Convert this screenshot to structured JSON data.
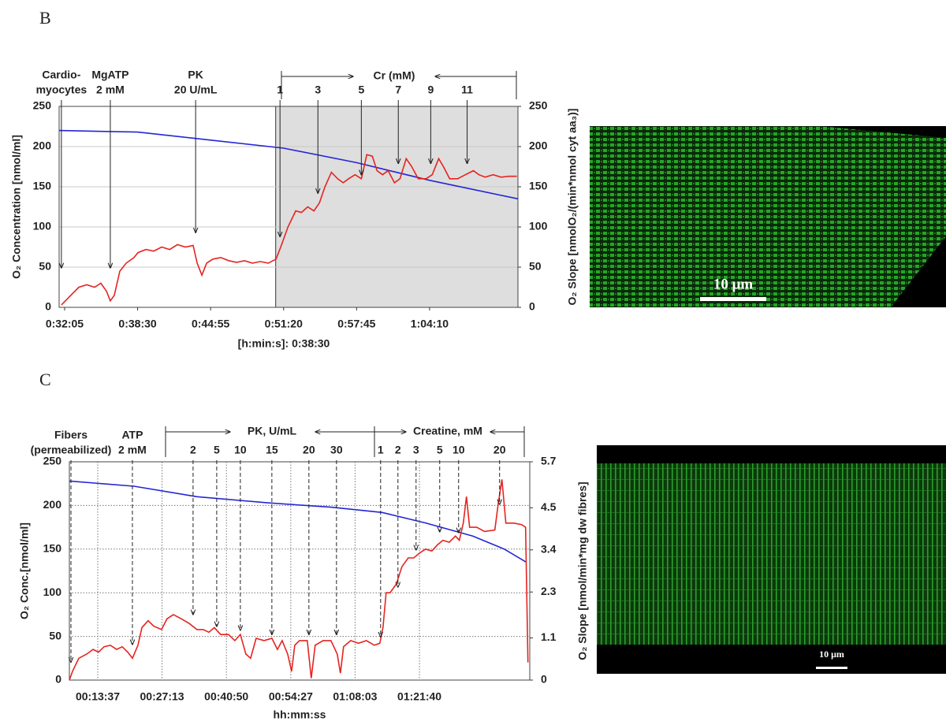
{
  "panel_labels": [
    "B",
    "C"
  ],
  "images": [
    {
      "scale_bar": "10 μm"
    },
    {
      "scale_bar": "10 μm"
    }
  ],
  "chart_data": [
    {
      "type": "line",
      "ylabel": "O₂ Concentration [nmol/ml]",
      "y2label": "O₂ Slope [nmolO₂/(min*nmol cyt aa₃)]",
      "xlabel": "[h:min:s]: 0:38:30",
      "xlim": [
        1896,
        4316
      ],
      "ylim": [
        0,
        250
      ],
      "y2lim": [
        0,
        250
      ],
      "xticks": [
        {
          "value": 1925,
          "label": "0:32:05"
        },
        {
          "value": 2310,
          "label": "0:38:30"
        },
        {
          "value": 2695,
          "label": "0:44:55"
        },
        {
          "value": 3080,
          "label": "0:51:20"
        },
        {
          "value": 3465,
          "label": "0:57:45"
        },
        {
          "value": 3850,
          "label": "1:04:10"
        }
      ],
      "yticks": [
        0,
        50,
        100,
        150,
        200,
        250
      ],
      "y2ticks": [
        0,
        50,
        100,
        150,
        200,
        250
      ],
      "xgrid": false,
      "ygrid": true,
      "grid_style": "solid",
      "shaded_from": 3038,
      "arrow_style": "solid",
      "bracket_labels": [
        "Cr (mM)"
      ],
      "series": [
        {
          "color": "#2525d6",
          "x": [
            1896,
            2310,
            2695,
            3080,
            3465,
            3850,
            4316
          ],
          "values": [
            220,
            218,
            208,
            198,
            180,
            158,
            135
          ]
        },
        {
          "color": "#e62420",
          "axis": "y2",
          "x": [
            1908,
            1958,
            2000,
            2042,
            2083,
            2116,
            2146,
            2166,
            2187,
            2216,
            2250,
            2291,
            2312,
            2354,
            2395,
            2437,
            2479,
            2520,
            2562,
            2603,
            2624,
            2649,
            2674,
            2707,
            2749,
            2791,
            2832,
            2874,
            2916,
            2957,
            2999,
            3040,
            3065,
            3103,
            3144,
            3174,
            3207,
            3240,
            3269,
            3298,
            3332,
            3365,
            3394,
            3423,
            3457,
            3490,
            3519,
            3548,
            3573,
            3602,
            3631,
            3665,
            3694,
            3727,
            3756,
            3790,
            3831,
            3864,
            3898,
            3923,
            3956,
            3998,
            4039,
            4081,
            4110,
            4143,
            4185,
            4227,
            4268,
            4310
          ],
          "values": [
            3,
            15,
            25,
            28,
            25,
            30,
            20,
            8,
            15,
            45,
            55,
            62,
            68,
            72,
            70,
            75,
            72,
            78,
            75,
            77,
            55,
            40,
            55,
            60,
            62,
            58,
            56,
            58,
            55,
            57,
            55,
            60,
            75,
            100,
            120,
            118,
            125,
            120,
            130,
            150,
            168,
            160,
            155,
            160,
            165,
            160,
            190,
            188,
            170,
            165,
            170,
            155,
            160,
            185,
            175,
            160,
            160,
            165,
            185,
            175,
            160,
            160,
            165,
            170,
            165,
            162,
            165,
            162,
            163,
            163
          ]
        }
      ],
      "annotations": [
        {
          "lines": [
            "Cardio-",
            "myocytes"
          ],
          "x": 1908,
          "y": 49
        },
        {
          "lines": [
            "MgATP",
            "2 mM"
          ],
          "x": 2166,
          "y": 49
        },
        {
          "lines": [
            "PK",
            "20 U/mL"
          ],
          "x": 2616,
          "y": 93
        },
        {
          "lines": [
            "1"
          ],
          "x": 3061,
          "y": 88
        },
        {
          "lines": [
            "3"
          ],
          "x": 3261,
          "y": 142
        },
        {
          "lines": [
            "5"
          ],
          "x": 3490,
          "y": 165
        },
        {
          "lines": [
            "7"
          ],
          "x": 3685,
          "y": 179
        },
        {
          "lines": [
            "9"
          ],
          "x": 3856,
          "y": 179
        },
        {
          "lines": [
            "11"
          ],
          "x": 4048,
          "y": 179
        }
      ]
    },
    {
      "type": "line",
      "ylabel": "O₂ Conc.[nmol/ml]",
      "y2label": "O₂ Slope [nmol/min*mg dw fibres]",
      "xlabel": "hh:mm:ss",
      "xlim": [
        457,
        6300
      ],
      "ylim": [
        0,
        250
      ],
      "y2lim": [
        0,
        5.7
      ],
      "xticks": [
        {
          "value": 817,
          "label": "00:13:37"
        },
        {
          "value": 1633,
          "label": "00:27:13"
        },
        {
          "value": 2450,
          "label": "00:40:50"
        },
        {
          "value": 3267,
          "label": "00:54:27"
        },
        {
          "value": 4083,
          "label": "01:08:03"
        },
        {
          "value": 4900,
          "label": "01:21:40"
        }
      ],
      "yticks": [
        0,
        50,
        100,
        150,
        200,
        250
      ],
      "y2ticks": [
        0,
        1.1,
        2.3,
        3.4,
        4.5,
        5.7
      ],
      "xgrid": true,
      "ygrid": true,
      "grid_style": "dotted",
      "arrow_style": "dashed",
      "bracket_labels": [
        "PK, U/mL",
        "Creatine, mM"
      ],
      "series": [
        {
          "color": "#2525d6",
          "x": [
            457,
            1277,
            2077,
            2977,
            3777,
            4427,
            4977,
            5577,
            5977,
            6257
          ],
          "values": [
            228,
            222,
            210,
            203,
            198,
            192,
            180,
            165,
            150,
            135
          ]
        },
        {
          "color": "#e62420",
          "axis": "y2",
          "x": [
            457,
            497,
            577,
            677,
            757,
            827,
            897,
            977,
            1057,
            1127,
            1197,
            1257,
            1327,
            1377,
            1457,
            1527,
            1627,
            1697,
            1777,
            1877,
            1977,
            2077,
            2157,
            2227,
            2297,
            2377,
            2477,
            2557,
            2627,
            2697,
            2757,
            2827,
            2927,
            3027,
            3097,
            3157,
            3227,
            3277,
            3317,
            3377,
            3477,
            3527,
            3577,
            3677,
            3777,
            3857,
            3897,
            3937,
            4027,
            4127,
            4227,
            4327,
            4397,
            4437,
            4477,
            4527,
            4607,
            4677,
            4757,
            4827,
            4897,
            4977,
            5057,
            5127,
            5197,
            5277,
            5357,
            5407,
            5457,
            5497,
            5537,
            5627,
            5727,
            5857,
            5897,
            5947,
            5997,
            6097,
            6197,
            6247,
            6277
          ],
          "values": [
            0,
            0.23,
            0.57,
            0.68,
            0.8,
            0.73,
            0.87,
            0.91,
            0.8,
            0.87,
            0.73,
            0.57,
            0.91,
            1.37,
            1.55,
            1.41,
            1.32,
            1.6,
            1.71,
            1.6,
            1.48,
            1.32,
            1.32,
            1.25,
            1.37,
            1.19,
            1.19,
            1.03,
            1.19,
            0.68,
            0.57,
            1.09,
            1.03,
            1.09,
            0.8,
            1.03,
            0.68,
            0.23,
            0.91,
            1.03,
            1.03,
            0.05,
            0.91,
            1.03,
            1.03,
            0.68,
            0.18,
            0.87,
            1.03,
            0.96,
            1.03,
            0.91,
            0.96,
            1.37,
            2.28,
            2.28,
            2.51,
            2.96,
            3.19,
            3.19,
            3.31,
            3.42,
            3.37,
            3.53,
            3.65,
            3.6,
            3.76,
            3.65,
            4.1,
            4.79,
            3.99,
            3.99,
            3.88,
            3.92,
            4.56,
            5.24,
            4.1,
            4.1,
            4.06,
            3.99,
            0.46
          ]
        }
      ],
      "annotations": [
        {
          "lines": [
            "Fibers",
            "(permeabilized)"
          ],
          "x": 477,
          "y": 0.47
        },
        {
          "lines": [
            "ATP",
            "2 mM"
          ],
          "x": 1257,
          "y": 0.93
        },
        {
          "lines": [
            "2"
          ],
          "x": 2027,
          "y": 1.71
        },
        {
          "lines": [
            "5"
          ],
          "x": 2327,
          "y": 1.4
        },
        {
          "lines": [
            "10"
          ],
          "x": 2627,
          "y": 1.3
        },
        {
          "lines": [
            "15"
          ],
          "x": 3027,
          "y": 1.19
        },
        {
          "lines": [
            "20"
          ],
          "x": 3497,
          "y": 1.19
        },
        {
          "lines": [
            "30"
          ],
          "x": 3847,
          "y": 1.19
        },
        {
          "lines": [
            "1"
          ],
          "x": 4407,
          "y": 1.13
        },
        {
          "lines": [
            "2"
          ],
          "x": 4627,
          "y": 2.43
        },
        {
          "lines": [
            "3"
          ],
          "x": 4857,
          "y": 3.4
        },
        {
          "lines": [
            "5"
          ],
          "x": 5157,
          "y": 3.87
        },
        {
          "lines": [
            "10"
          ],
          "x": 5397,
          "y": 3.85
        },
        {
          "lines": [
            "20"
          ],
          "x": 5917,
          "y": 4.59
        }
      ]
    }
  ]
}
